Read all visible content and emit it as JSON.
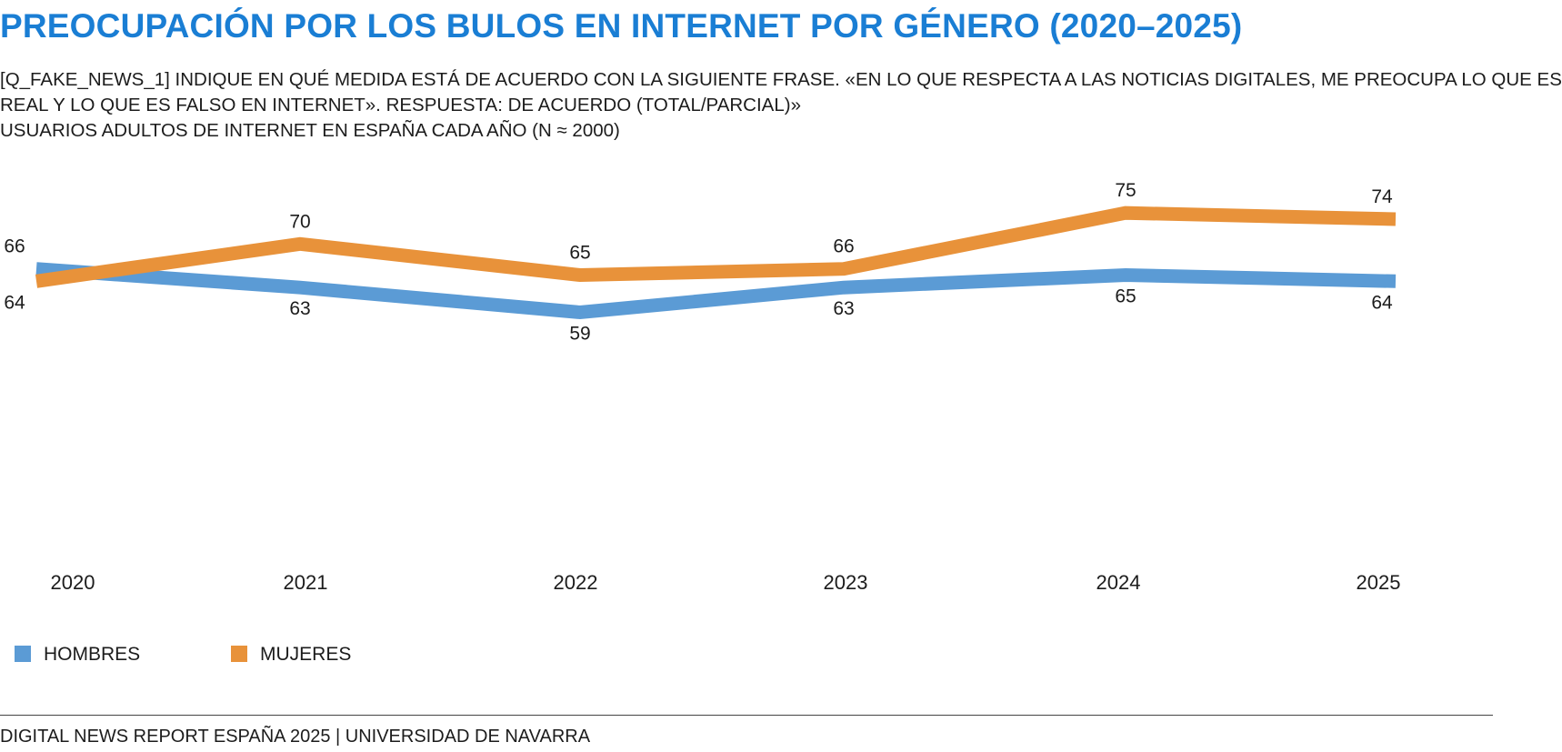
{
  "title": "PREOCUPACIÓN POR LOS BULOS EN INTERNET POR GÉNERO (2020–2025)",
  "subtitle_lines": [
    "[Q_FAKE_NEWS_1] INDIQUE EN QUÉ MEDIDA ESTÁ DE ACUERDO CON LA SIGUIENTE FRASE. «EN LO QUE RESPECTA A LAS NOTICIAS DIGITALES, ME PREOCUPA LO QUE ES",
    "REAL Y LO QUE ES FALSO EN INTERNET». RESPUESTA: DE ACUERDO (TOTAL/PARCIAL)»",
    "USUARIOS ADULTOS DE INTERNET EN ESPAÑA CADA AÑO (N ≈ 2000)"
  ],
  "footer": "DIGITAL NEWS REPORT ESPAÑA 2025 | UNIVERSIDAD DE NAVARRA",
  "chart_data": {
    "type": "line",
    "x": [
      "2020",
      "2021",
      "2022",
      "2023",
      "2024",
      "2025"
    ],
    "series": [
      {
        "name": "HOMBRES",
        "color": "#5b9bd5",
        "values": [
          66,
          63,
          59,
          63,
          65,
          64
        ]
      },
      {
        "name": "MUJERES",
        "color": "#e8923a",
        "values": [
          64,
          70,
          65,
          66,
          75,
          74
        ]
      }
    ],
    "ylim": [
      20,
      80
    ],
    "grid": false,
    "legend": "bottom-left",
    "data_labels": true
  }
}
